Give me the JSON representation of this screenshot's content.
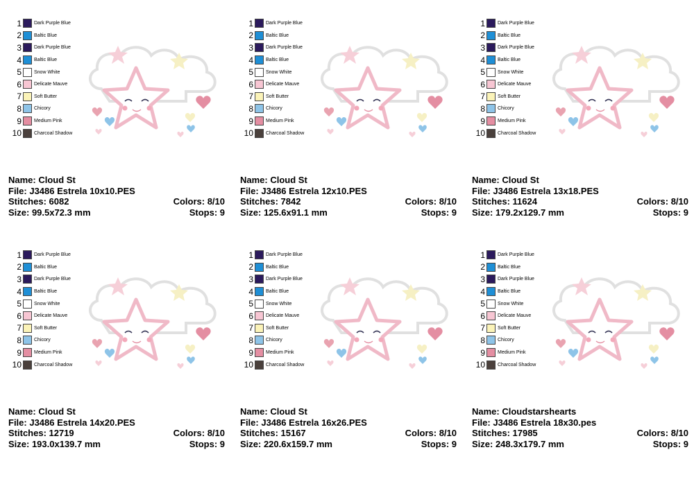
{
  "palette": [
    {
      "num": "1",
      "name": "Dark Purple Blue",
      "color": "#2b1a5c"
    },
    {
      "num": "2",
      "name": "Baltic Blue",
      "color": "#1f8fd6"
    },
    {
      "num": "3",
      "name": "Dark Purple Blue",
      "color": "#2b1a5c"
    },
    {
      "num": "4",
      "name": "Baltic Blue",
      "color": "#1f8fd6"
    },
    {
      "num": "5",
      "name": "Snow White",
      "color": "#ffffff"
    },
    {
      "num": "6",
      "name": "Delicate Mauve",
      "color": "#f7c6d3"
    },
    {
      "num": "7",
      "name": "Soft Butter",
      "color": "#fbf3b8"
    },
    {
      "num": "8",
      "name": "Chicory",
      "color": "#8ec4e8"
    },
    {
      "num": "9",
      "name": "Medium Pink",
      "color": "#e48ea2"
    },
    {
      "num": "10",
      "name": "Charcoal Shadow",
      "color": "#4a403c"
    }
  ],
  "designs": [
    {
      "name": "Name: Cloud St",
      "file": "File: J3486 Estrela 10x10.PES",
      "stitches": "Stitches: 6082",
      "colors": "Colors: 8/10",
      "size": "Size: 99.5x72.3 mm",
      "stops": "Stops: 9"
    },
    {
      "name": "Name: Cloud St",
      "file": "File: J3486 Estrela 12x10.PES",
      "stitches": "Stitches: 7842",
      "colors": "Colors: 8/10",
      "size": "Size: 125.6x91.1 mm",
      "stops": "Stops: 9"
    },
    {
      "name": "Name: Cloud St",
      "file": "File: J3486 Estrela 13x18.PES",
      "stitches": "Stitches: 11624",
      "colors": "Colors: 8/10",
      "size": "Size: 179.2x129.7 mm",
      "stops": "Stops: 9"
    },
    {
      "name": "Name: Cloud St",
      "file": "File: J3486 Estrela 14x20.PES",
      "stitches": "Stitches: 12719",
      "colors": "Colors: 8/10",
      "size": "Size: 193.0x139.7 mm",
      "stops": "Stops: 9"
    },
    {
      "name": "Name: Cloud St",
      "file": "File: J3486 Estrela 16x26.PES",
      "stitches": "Stitches: 15167",
      "colors": "Colors: 8/10",
      "size": "Size: 220.6x159.7 mm",
      "stops": "Stops: 9"
    },
    {
      "name": "Name: Cloudstarshearts",
      "file": "File: J3486 Estrela 18x30.pes",
      "stitches": "Stitches: 17985",
      "colors": "Colors: 8/10",
      "size": "Size: 248.3x179.7 mm",
      "stops": "Stops: 9"
    }
  ]
}
